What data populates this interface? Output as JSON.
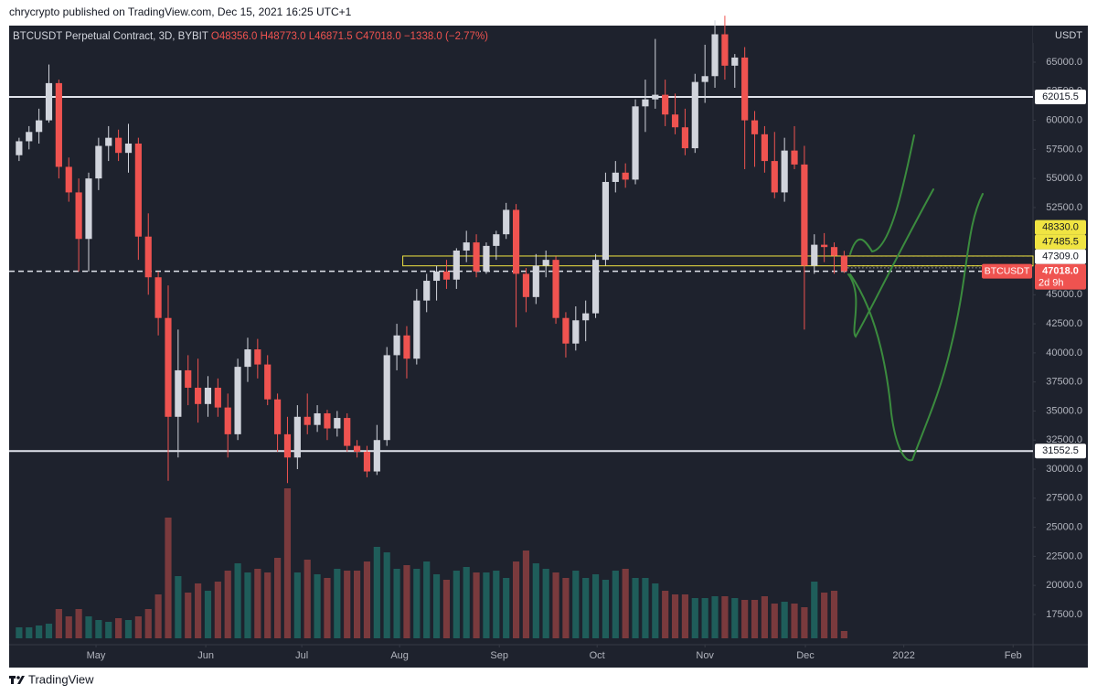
{
  "chart_data": {
    "type": "candlestick",
    "header": "chrycrypto published on TradingView.com, Dec 15, 2021 16:25 UTC+1",
    "title": "BTCUSDT Perpetual Contract, 3D, BYBIT",
    "legend": [
      "O48356.0",
      "H48773.0",
      "L46871.5",
      "C47018.0",
      "−1338.0 (−2.77%)"
    ],
    "currency": "USDT",
    "footer": "TradingView",
    "up_color": "#d1d4dc",
    "down_color": "#ef5350",
    "volume_up_color": "#1f5d5a",
    "volume_down_color": "#7a3a3d",
    "open": [
      57000,
      58200,
      59000,
      60000,
      63200,
      56000,
      53800,
      49800,
      55000,
      57800,
      58500,
      57200,
      58000,
      50000,
      46500,
      43000,
      34500,
      38500,
      37000,
      35600,
      37000,
      35300,
      33000,
      38800,
      40300,
      39000,
      36000,
      33000,
      31000,
      34500,
      33800,
      34800,
      33500,
      34400,
      32000,
      31500,
      29800,
      32500,
      39800,
      41500,
      39500,
      44500,
      46200,
      47000,
      46300,
      48800,
      49500,
      47000,
      49200,
      50200,
      52300,
      46800,
      44800,
      47500,
      48000,
      43000,
      40800,
      42800,
      43400,
      48000,
      54700,
      55500,
      54900,
      61200,
      61800,
      62200,
      60500,
      59400,
      57600,
      63300,
      63800,
      67400,
      64700,
      65400,
      60000,
      58800,
      56500,
      53800,
      57400,
      56200,
      47500,
      49300,
      49100,
      48356
    ],
    "high": [
      58500,
      59500,
      61000,
      64800,
      63500,
      56800,
      55000,
      55500,
      58500,
      59500,
      59200,
      59700,
      58500,
      52000,
      47000,
      45800,
      42000,
      39800,
      39500,
      38000,
      37800,
      36500,
      39500,
      41300,
      41200,
      39800,
      36500,
      34500,
      35500,
      36500,
      35500,
      35100,
      35000,
      34800,
      32500,
      32000,
      33800,
      40500,
      42500,
      42300,
      45500,
      46800,
      47500,
      48000,
      49000,
      50500,
      50200,
      49500,
      50500,
      52900,
      52800,
      47300,
      48500,
      48800,
      48300,
      43500,
      44000,
      44500,
      48500,
      55500,
      56500,
      56300,
      61800,
      63500,
      67000,
      63500,
      62300,
      61000,
      64000,
      66500,
      68600,
      69000,
      65700,
      66300,
      60800,
      59500,
      59000,
      58500,
      59500,
      57800,
      50200,
      50300,
      49500,
      48773
    ],
    "low": [
      56500,
      57500,
      58000,
      59800,
      55000,
      53000,
      47000,
      47000,
      54000,
      56500,
      56500,
      55500,
      48000,
      45000,
      41500,
      29000,
      31000,
      35500,
      34000,
      34500,
      34500,
      31000,
      32500,
      37500,
      37800,
      35500,
      31500,
      28800,
      30000,
      33000,
      33200,
      32500,
      32800,
      31500,
      31000,
      29300,
      29500,
      32000,
      38500,
      37800,
      39000,
      43500,
      44500,
      45500,
      45500,
      47800,
      46500,
      46800,
      48000,
      49800,
      42200,
      43500,
      44200,
      46500,
      42500,
      39600,
      40200,
      41000,
      43000,
      47500,
      53800,
      54200,
      54500,
      59000,
      61000,
      59500,
      58800,
      57000,
      57200,
      61500,
      62800,
      63500,
      62800,
      55800,
      56000,
      55500,
      53300,
      53000,
      55800,
      42000,
      46800,
      47800,
      46800,
      46871.5
    ],
    "close": [
      58200,
      59000,
      60000,
      63200,
      56000,
      53800,
      49800,
      55000,
      57800,
      58500,
      57200,
      58000,
      50000,
      46500,
      43000,
      34500,
      38500,
      37000,
      35600,
      37000,
      35300,
      33000,
      38800,
      40300,
      39000,
      36000,
      33000,
      31000,
      34500,
      33800,
      34800,
      33500,
      34400,
      32000,
      31500,
      29800,
      32500,
      39800,
      41500,
      39500,
      44500,
      46200,
      47000,
      46300,
      48800,
      49500,
      47000,
      49200,
      50200,
      52300,
      46800,
      44800,
      47500,
      48000,
      43000,
      40800,
      42800,
      43400,
      48000,
      54700,
      55500,
      54900,
      61200,
      61800,
      62200,
      60500,
      59400,
      57600,
      63300,
      63800,
      67400,
      64700,
      65400,
      60000,
      58800,
      56500,
      53800,
      57400,
      56200,
      47500,
      49300,
      49100,
      48356,
      47018
    ],
    "volume": [
      6,
      6,
      7,
      8,
      16,
      12,
      16,
      12,
      10,
      9,
      11,
      10,
      12,
      16,
      24,
      66,
      34,
      25,
      30,
      26,
      31,
      37,
      41,
      36,
      38,
      36,
      44,
      82,
      36,
      43,
      35,
      33,
      38,
      37,
      37,
      42,
      50,
      47,
      38,
      40,
      38,
      42,
      35,
      32,
      37,
      39,
      36,
      36,
      37,
      33,
      42,
      48,
      41,
      38,
      36,
      33,
      37,
      33,
      35,
      32,
      37,
      38,
      33,
      33,
      30,
      26,
      24,
      24,
      22,
      22,
      23,
      23,
      22,
      21,
      21,
      23,
      19,
      20,
      19,
      17,
      31,
      25,
      26,
      4
    ],
    "vlim": [
      0,
      100
    ],
    "xlim": [
      -1,
      102
    ],
    "xticks": [
      {
        "value": 7.74,
        "label": "May"
      },
      {
        "value": 18.78,
        "label": "Jun"
      },
      {
        "value": 28.44,
        "label": "Jul"
      },
      {
        "value": 38.28,
        "label": "Aug"
      },
      {
        "value": 48.31,
        "label": "Sep"
      },
      {
        "value": 58.15,
        "label": "Oct"
      },
      {
        "value": 69.0,
        "label": "Nov"
      },
      {
        "value": 79.1,
        "label": "Dec"
      },
      {
        "value": 89.0,
        "label": "2022"
      },
      {
        "value": 100.0,
        "label": "Feb"
      }
    ],
    "ylim": [
      14899,
      68147
    ],
    "yticks": [
      {
        "value": 65000,
        "label": "65000.0"
      },
      {
        "value": 62500,
        "label": "62500.0"
      },
      {
        "value": 60000,
        "label": "60000.0"
      },
      {
        "value": 57500,
        "label": "57500.0"
      },
      {
        "value": 55000,
        "label": "55000.0"
      },
      {
        "value": 52500,
        "label": "52500.0"
      },
      {
        "value": 45000,
        "label": "45000.0"
      },
      {
        "value": 42500,
        "label": "42500.0"
      },
      {
        "value": 40000,
        "label": "40000.0"
      },
      {
        "value": 37500,
        "label": "37500.0"
      },
      {
        "value": 35000,
        "label": "35000.0"
      },
      {
        "value": 32500,
        "label": "32500.0"
      },
      {
        "value": 30000,
        "label": "30000.0"
      },
      {
        "value": 27500,
        "label": "27500.0"
      },
      {
        "value": 25000,
        "label": "25000.0"
      },
      {
        "value": 22500,
        "label": "22500.0"
      },
      {
        "value": 20000,
        "label": "20000.0"
      },
      {
        "value": 17500,
        "label": "17500.0"
      }
    ],
    "grid": false,
    "levels": [
      {
        "value": 62015.5,
        "label": "62015.5"
      },
      {
        "value": 31552.5,
        "label": "31552.5"
      }
    ],
    "zone": {
      "top": {
        "value": 48330,
        "label": "48330.0"
      },
      "bottom": {
        "value": 47485.5,
        "label": "47485.5"
      },
      "start": 38.6,
      "color": "#f0e442"
    },
    "marker": {
      "value": 47309,
      "label": "47309.0"
    },
    "last": {
      "name": "BTCUSDT",
      "value": 47018,
      "label": "47018.0",
      "countdown": "2d 9h",
      "color": "#ef5350"
    }
  }
}
